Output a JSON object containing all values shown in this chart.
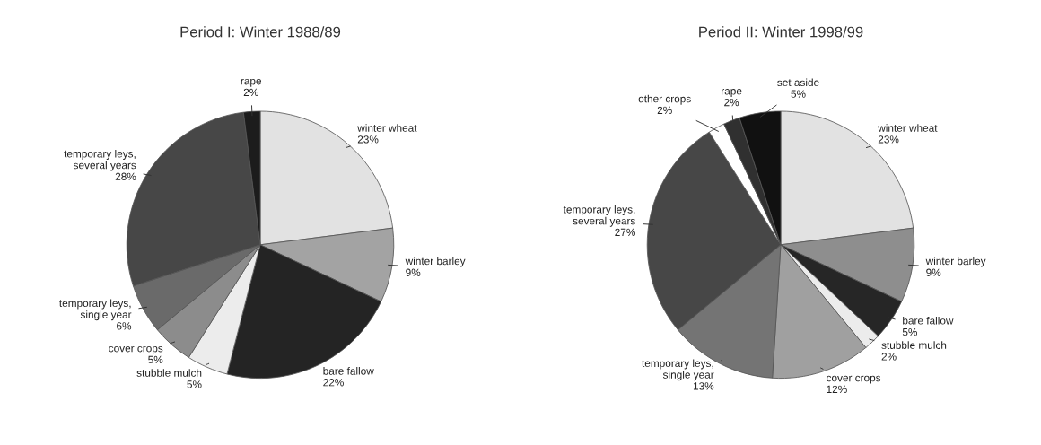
{
  "chart_data": [
    {
      "type": "pie",
      "title": "Period I: Winter 1988/89",
      "categories": [
        "winter wheat",
        "winter barley",
        "bare fallow",
        "stubble mulch",
        "cover crops",
        "temporary leys,\nsingle year",
        "temporary leys,\nseveral years",
        "rape"
      ],
      "values": [
        23,
        9,
        22,
        5,
        5,
        6,
        28,
        2
      ],
      "value_labels": [
        "23%",
        "9%",
        "22%",
        "5%",
        "5%",
        "6%",
        "28%",
        "2%"
      ],
      "colors": [
        "#e2e2e2",
        "#a3a3a3",
        "#242424",
        "#ececec",
        "#8c8c8c",
        "#6a6a6a",
        "#474747",
        "#1c1c1c"
      ]
    },
    {
      "type": "pie",
      "title": "Period II: Winter 1998/99",
      "categories": [
        "winter wheat",
        "winter barley",
        "bare fallow",
        "stubble mulch",
        "cover crops",
        "temporary leys,\nsingle year",
        "temporary leys,\nseveral years",
        "other crops",
        "rape",
        "set aside"
      ],
      "values": [
        23,
        9,
        5,
        2,
        12,
        13,
        27,
        2,
        2,
        5
      ],
      "value_labels": [
        "23%",
        "9%",
        "5%",
        "2%",
        "12%",
        "13%",
        "27%",
        "2%",
        "2%",
        "5%"
      ],
      "colors": [
        "#e2e2e2",
        "#8e8e8e",
        "#262626",
        "#ececec",
        "#a0a0a0",
        "#747474",
        "#474747",
        "#ffffff",
        "#303030",
        "#111111"
      ]
    }
  ]
}
